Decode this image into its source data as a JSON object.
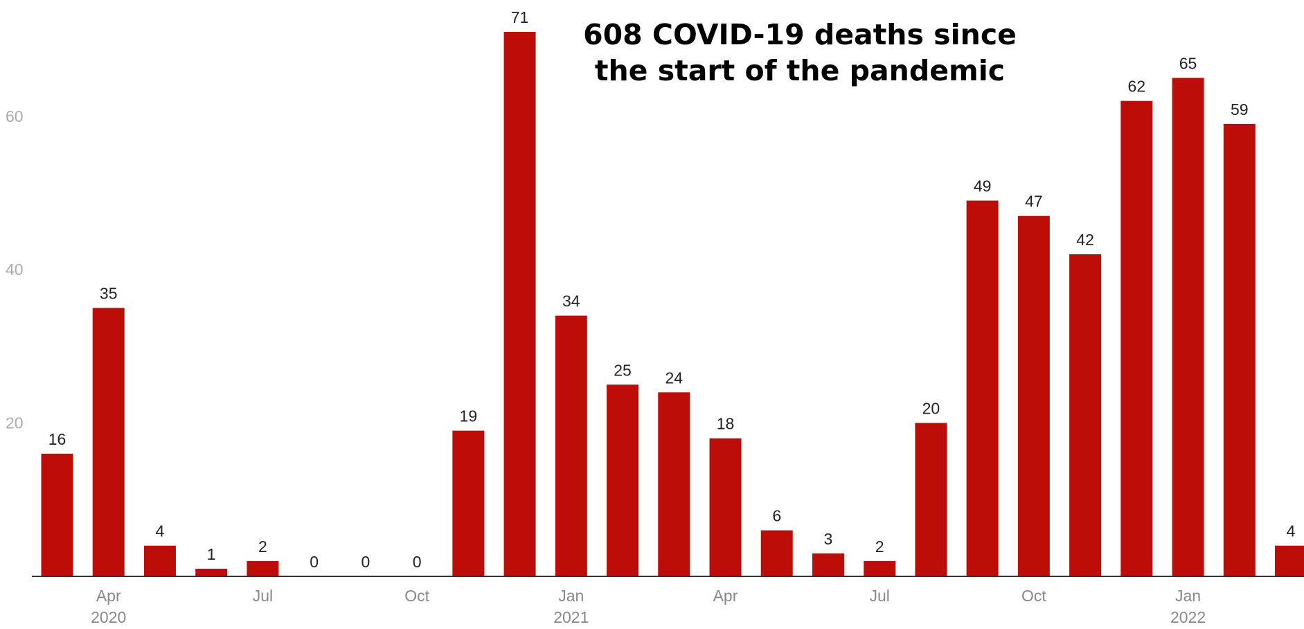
{
  "chart_data": {
    "type": "bar",
    "title": "608 COVID-19 deaths since the start of the pandemic",
    "xlabel": "",
    "ylabel": "",
    "ylim": [
      0,
      74
    ],
    "y_ticks": [
      20,
      40,
      60
    ],
    "grid": false,
    "color": "#bd0d08",
    "categories": [
      "2020-03",
      "2020-04",
      "2020-05",
      "2020-06",
      "2020-07",
      "2020-08",
      "2020-09",
      "2020-10",
      "2020-11",
      "2020-12",
      "2021-01",
      "2021-02",
      "2021-03",
      "2021-04",
      "2021-05",
      "2021-06",
      "2021-07",
      "2021-08",
      "2021-09",
      "2021-10",
      "2021-11",
      "2021-12",
      "2022-01",
      "2022-02",
      "2022-03"
    ],
    "values": [
      16,
      35,
      4,
      1,
      2,
      0,
      0,
      0,
      19,
      71,
      34,
      25,
      24,
      18,
      6,
      3,
      2,
      20,
      49,
      47,
      42,
      62,
      65,
      59,
      4
    ],
    "x_tick_labels": [
      {
        "category": "2020-04",
        "month": "Apr",
        "year": "2020"
      },
      {
        "category": "2020-07",
        "month": "Jul",
        "year": ""
      },
      {
        "category": "2020-10",
        "month": "Oct",
        "year": ""
      },
      {
        "category": "2021-01",
        "month": "Jan",
        "year": "2021"
      },
      {
        "category": "2021-04",
        "month": "Apr",
        "year": ""
      },
      {
        "category": "2021-07",
        "month": "Jul",
        "year": ""
      },
      {
        "category": "2021-10",
        "month": "Oct",
        "year": ""
      },
      {
        "category": "2022-01",
        "month": "Jan",
        "year": "2022"
      }
    ]
  }
}
